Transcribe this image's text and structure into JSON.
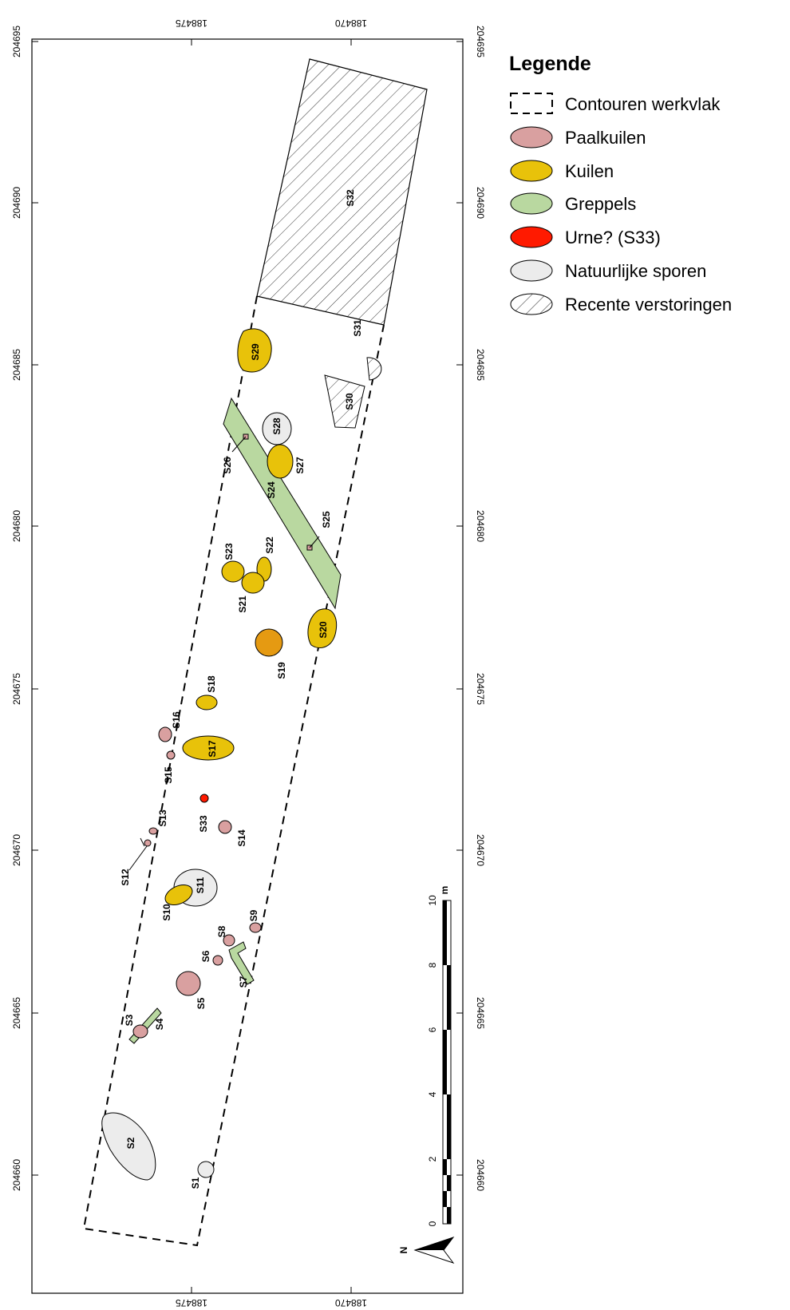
{
  "legend": {
    "title": "Legende",
    "items": [
      {
        "label": "Contouren werkvlak",
        "symbol": "dashed-box"
      },
      {
        "label": "Paalkuilen",
        "symbol": "ellipse",
        "color": "#d9a0a0"
      },
      {
        "label": "Kuilen",
        "symbol": "ellipse",
        "color": "#e8c20a"
      },
      {
        "label": "Greppels",
        "symbol": "ellipse",
        "color": "#b9d8a0"
      },
      {
        "label": "Urne? (S33)",
        "symbol": "ellipse",
        "color": "#ff1a00"
      },
      {
        "label": "Natuurlijke sporen",
        "symbol": "ellipse",
        "color": "#ececec"
      },
      {
        "label": "Recente verstoringen",
        "symbol": "hatch"
      }
    ]
  },
  "grid": {
    "x_labels": [
      "188475",
      "188470"
    ],
    "y_labels": [
      "204695",
      "204690",
      "204685",
      "204680",
      "204675",
      "204670",
      "204665",
      "204660"
    ]
  },
  "scale_bar": {
    "unit": "m",
    "ticks": [
      "0",
      "2",
      "4",
      "6",
      "8",
      "10"
    ]
  },
  "north_arrow": {
    "label": "N"
  },
  "features": [
    {
      "id": "S1",
      "type": "natural"
    },
    {
      "id": "S2",
      "type": "natural"
    },
    {
      "id": "S3",
      "type": "posthole"
    },
    {
      "id": "S4",
      "type": "ditch"
    },
    {
      "id": "S5",
      "type": "posthole"
    },
    {
      "id": "S6",
      "type": "posthole"
    },
    {
      "id": "S7",
      "type": "ditch"
    },
    {
      "id": "S8",
      "type": "posthole"
    },
    {
      "id": "S9",
      "type": "posthole"
    },
    {
      "id": "S10",
      "type": "pit"
    },
    {
      "id": "S11",
      "type": "natural"
    },
    {
      "id": "S12",
      "type": "posthole"
    },
    {
      "id": "S13",
      "type": "posthole"
    },
    {
      "id": "S14",
      "type": "posthole"
    },
    {
      "id": "S15",
      "type": "posthole"
    },
    {
      "id": "S16",
      "type": "posthole"
    },
    {
      "id": "S17",
      "type": "pit"
    },
    {
      "id": "S18",
      "type": "pit"
    },
    {
      "id": "S19",
      "type": "pit"
    },
    {
      "id": "S20",
      "type": "pit"
    },
    {
      "id": "S21",
      "type": "pit"
    },
    {
      "id": "S22",
      "type": "pit"
    },
    {
      "id": "S23",
      "type": "pit"
    },
    {
      "id": "S24",
      "type": "ditch"
    },
    {
      "id": "S25",
      "type": "posthole"
    },
    {
      "id": "S26",
      "type": "posthole"
    },
    {
      "id": "S27",
      "type": "pit"
    },
    {
      "id": "S28",
      "type": "natural"
    },
    {
      "id": "S29",
      "type": "pit"
    },
    {
      "id": "S30",
      "type": "disturbance"
    },
    {
      "id": "S31",
      "type": "disturbance"
    },
    {
      "id": "S32",
      "type": "disturbance"
    },
    {
      "id": "S33",
      "type": "urn"
    }
  ]
}
